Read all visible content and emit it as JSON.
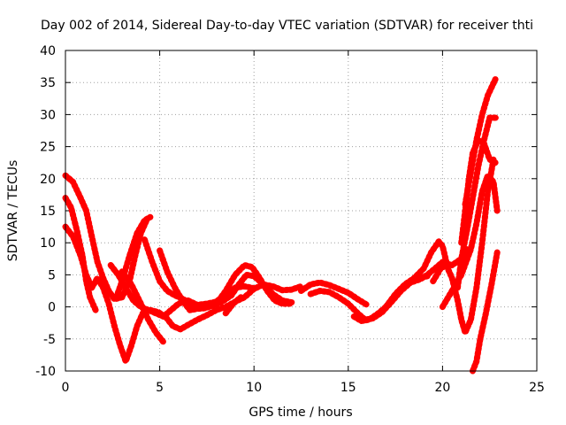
{
  "chart_data": {
    "type": "line",
    "title": "Day 002 of 2014, Sidereal Day-to-day VTEC variation (SDTVAR) for receiver thti",
    "xlabel": "GPS time / hours",
    "ylabel": "SDTVAR / TECUs",
    "xlim": [
      0,
      25
    ],
    "ylim": [
      -10,
      40
    ],
    "xticks": [
      "0",
      "5",
      "10",
      "15",
      "20",
      "25"
    ],
    "yticks": [
      "-10",
      "-5",
      "0",
      "5",
      "10",
      "15",
      "20",
      "25",
      "30",
      "35",
      "40"
    ],
    "grid": true,
    "legend": "none",
    "color": "#ff0000",
    "series": [
      {
        "points": [
          [
            0.0,
            20.5
          ],
          [
            0.4,
            19.5
          ],
          [
            0.8,
            17
          ],
          [
            1.1,
            15
          ],
          [
            1.4,
            11
          ],
          [
            1.7,
            7
          ],
          [
            2.0,
            4.5
          ],
          [
            2.3,
            2.5
          ],
          [
            2.6,
            1.2
          ],
          [
            3.0,
            1.5
          ],
          [
            3.4,
            4
          ],
          [
            3.7,
            8
          ],
          [
            4.0,
            11.5
          ],
          [
            4.3,
            13.5
          ]
        ]
      },
      {
        "points": [
          [
            0.0,
            17
          ],
          [
            0.3,
            15.5
          ],
          [
            0.6,
            12
          ],
          [
            0.9,
            8
          ],
          [
            1.1,
            4
          ],
          [
            1.3,
            1.5
          ],
          [
            1.6,
            -0.5
          ]
        ]
      },
      {
        "points": [
          [
            0.0,
            12.5
          ],
          [
            0.4,
            11
          ],
          [
            0.8,
            8
          ],
          [
            1.1,
            5
          ],
          [
            1.4,
            3
          ],
          [
            1.7,
            4.5
          ],
          [
            2.0,
            3
          ],
          [
            2.3,
            0.5
          ],
          [
            2.6,
            -3
          ],
          [
            2.9,
            -6
          ],
          [
            3.2,
            -8.5
          ],
          [
            3.5,
            -6
          ],
          [
            3.8,
            -3
          ],
          [
            4.1,
            -1
          ],
          [
            4.5,
            -0.5
          ],
          [
            4.9,
            -0.8
          ],
          [
            5.3,
            -1.5
          ],
          [
            5.7,
            -3
          ],
          [
            6.1,
            -3.5
          ],
          [
            6.5,
            -2.8
          ],
          [
            7.0,
            -2
          ],
          [
            7.5,
            -1.3
          ],
          [
            8.0,
            -0.5
          ],
          [
            8.5,
            0
          ],
          [
            9.0,
            0.8
          ],
          [
            9.5,
            1.5
          ],
          [
            10.0,
            2.8
          ],
          [
            10.5,
            3.5
          ],
          [
            11.0,
            3.2
          ],
          [
            11.5,
            2.6
          ],
          [
            12.0,
            2.7
          ],
          [
            12.5,
            3.2
          ]
        ]
      },
      {
        "points": [
          [
            3.0,
            5.5
          ],
          [
            3.5,
            3.5
          ],
          [
            4.0,
            0.5
          ],
          [
            4.4,
            -2
          ],
          [
            4.8,
            -4
          ],
          [
            5.2,
            -5.5
          ]
        ]
      },
      {
        "points": [
          [
            2.4,
            6.5
          ],
          [
            2.8,
            5
          ],
          [
            3.2,
            3
          ],
          [
            3.6,
            1
          ],
          [
            4.0,
            0
          ],
          [
            4.4,
            -0.5
          ],
          [
            4.8,
            -1
          ],
          [
            5.2,
            -1.5
          ],
          [
            5.6,
            -0.5
          ],
          [
            6.0,
            0.5
          ],
          [
            6.5,
            1
          ],
          [
            7.0,
            0.3
          ],
          [
            7.5,
            0.5
          ],
          [
            8.0,
            0.8
          ],
          [
            8.5,
            2
          ],
          [
            9.0,
            3
          ],
          [
            9.5,
            3.2
          ],
          [
            10.0,
            2.9
          ]
        ]
      },
      {
        "points": [
          [
            2.7,
            1.5
          ],
          [
            3.0,
            4
          ],
          [
            3.4,
            8
          ],
          [
            3.8,
            11.5
          ],
          [
            4.2,
            13.5
          ],
          [
            4.5,
            14
          ]
        ]
      },
      {
        "points": [
          [
            4.2,
            10.5
          ],
          [
            4.6,
            7
          ],
          [
            5.0,
            4
          ],
          [
            5.4,
            2.5
          ],
          [
            5.8,
            1.8
          ],
          [
            6.2,
            1.3
          ],
          [
            6.6,
            0.5
          ],
          [
            7.0,
            -0.3
          ],
          [
            7.4,
            -0.2
          ],
          [
            7.8,
            0.2
          ],
          [
            8.3,
            0.8
          ],
          [
            8.8,
            1.8
          ],
          [
            9.2,
            3.5
          ],
          [
            9.6,
            5
          ],
          [
            10.0,
            4.8
          ],
          [
            10.5,
            3.5
          ],
          [
            11.0,
            2
          ],
          [
            11.5,
            1
          ],
          [
            12.0,
            0.7
          ]
        ]
      },
      {
        "points": [
          [
            5.0,
            8.8
          ],
          [
            5.4,
            5.5
          ],
          [
            5.8,
            3
          ],
          [
            6.2,
            1
          ],
          [
            6.6,
            -0.5
          ],
          [
            7.0,
            -0.3
          ]
        ]
      },
      {
        "points": [
          [
            8.0,
            0.5
          ],
          [
            8.5,
            2.5
          ],
          [
            9.0,
            5
          ],
          [
            9.5,
            6.5
          ],
          [
            9.9,
            6.2
          ],
          [
            10.3,
            4.5
          ],
          [
            10.7,
            2.5
          ],
          [
            11.1,
            1
          ],
          [
            11.5,
            0.5
          ],
          [
            11.9,
            0.5
          ]
        ]
      },
      {
        "points": [
          [
            8.5,
            -1
          ],
          [
            8.9,
            0.5
          ],
          [
            9.3,
            1.5
          ]
        ]
      },
      {
        "points": [
          [
            12.5,
            2.5
          ],
          [
            13.0,
            3.5
          ],
          [
            13.5,
            3.8
          ],
          [
            14.0,
            3.4
          ],
          [
            14.5,
            2.8
          ],
          [
            15.0,
            2.2
          ],
          [
            15.5,
            1.2
          ],
          [
            16.0,
            0.3
          ]
        ]
      },
      {
        "points": [
          [
            13.0,
            2
          ],
          [
            13.5,
            2.5
          ],
          [
            14.0,
            2.3
          ],
          [
            14.5,
            1.5
          ],
          [
            15.0,
            0.5
          ],
          [
            15.5,
            -1
          ],
          [
            15.9,
            -2
          ],
          [
            16.3,
            -1.8
          ],
          [
            16.8,
            -0.8
          ],
          [
            17.3,
            0.8
          ],
          [
            17.8,
            2.5
          ],
          [
            18.3,
            3.8
          ],
          [
            18.8,
            4.5
          ],
          [
            19.2,
            4.8
          ]
        ]
      },
      {
        "points": [
          [
            15.3,
            -1.5
          ],
          [
            15.7,
            -2.2
          ],
          [
            16.1,
            -2
          ],
          [
            16.6,
            -1
          ],
          [
            17.0,
            0
          ],
          [
            17.4,
            1.5
          ],
          [
            17.8,
            2.8
          ],
          [
            18.3,
            3.8
          ],
          [
            18.8,
            4.3
          ],
          [
            19.2,
            5
          ],
          [
            19.6,
            6
          ],
          [
            20.0,
            7
          ],
          [
            20.5,
            6.5
          ],
          [
            21.0,
            7.5
          ],
          [
            21.3,
            9
          ]
        ]
      },
      {
        "points": [
          [
            17.0,
            0
          ],
          [
            17.5,
            2
          ],
          [
            18.0,
            3.5
          ],
          [
            18.5,
            4.5
          ],
          [
            19.0,
            6
          ],
          [
            19.4,
            8.5
          ],
          [
            19.8,
            10.2
          ],
          [
            20.0,
            9.5
          ],
          [
            20.2,
            7
          ]
        ]
      },
      {
        "points": [
          [
            19.5,
            4
          ],
          [
            19.9,
            6
          ],
          [
            20.2,
            6.5
          ],
          [
            20.5,
            4.5
          ],
          [
            20.8,
            1
          ],
          [
            21.0,
            -2
          ],
          [
            21.2,
            -4
          ],
          [
            21.5,
            -2
          ],
          [
            21.8,
            3
          ],
          [
            22.1,
            10
          ],
          [
            22.4,
            18
          ],
          [
            22.7,
            23
          ]
        ]
      },
      {
        "points": [
          [
            20.0,
            0
          ],
          [
            20.5,
            2.5
          ],
          [
            21.0,
            5
          ],
          [
            21.5,
            9
          ],
          [
            21.8,
            13
          ],
          [
            22.1,
            18
          ],
          [
            22.4,
            20.5
          ],
          [
            22.7,
            19.5
          ],
          [
            22.9,
            15
          ]
        ]
      },
      {
        "points": [
          [
            20.8,
            3
          ],
          [
            21.0,
            7.5
          ],
          [
            21.3,
            12
          ],
          [
            21.6,
            17
          ],
          [
            21.9,
            22
          ],
          [
            22.2,
            26
          ],
          [
            22.5,
            29.5
          ],
          [
            22.9,
            29.5
          ]
        ]
      },
      {
        "points": [
          [
            21.0,
            10
          ],
          [
            21.2,
            15
          ],
          [
            21.4,
            20
          ],
          [
            21.6,
            24
          ],
          [
            21.9,
            26
          ],
          [
            22.2,
            25.5
          ],
          [
            22.5,
            23
          ],
          [
            22.8,
            22.5
          ]
        ]
      },
      {
        "points": [
          [
            21.2,
            16
          ],
          [
            21.5,
            21
          ],
          [
            21.8,
            26
          ],
          [
            22.1,
            30
          ],
          [
            22.4,
            33
          ],
          [
            22.8,
            35.5
          ]
        ]
      },
      {
        "points": [
          [
            21.6,
            -10
          ],
          [
            21.8,
            -8.5
          ],
          [
            22.0,
            -5
          ],
          [
            22.3,
            -1
          ],
          [
            22.6,
            3.5
          ],
          [
            22.9,
            8.5
          ]
        ]
      }
    ]
  }
}
